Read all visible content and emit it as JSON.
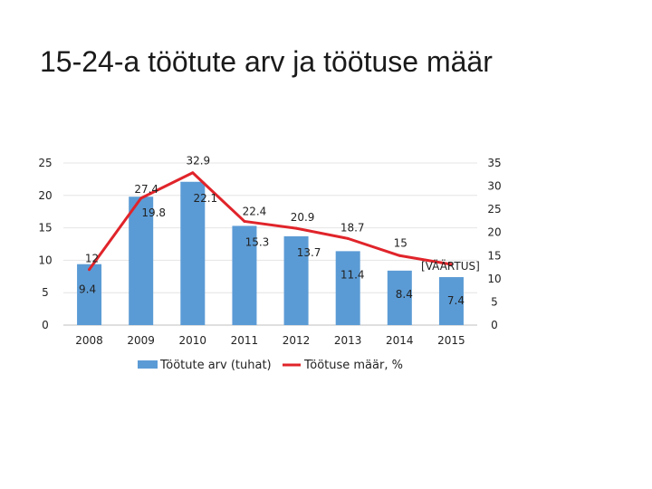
{
  "title": "15-24-a töötute arv ja töötuse määr",
  "chart_data": {
    "type": "bar+line",
    "categories": [
      "2008",
      "2009",
      "2010",
      "2011",
      "2012",
      "2013",
      "2014",
      "2015"
    ],
    "series": [
      {
        "name": "Töötute arv (tuhat)",
        "type": "bar",
        "axis": "left",
        "color": "#5b9bd5",
        "values": [
          9.4,
          19.8,
          22.1,
          15.3,
          13.7,
          11.4,
          8.4,
          7.4
        ],
        "labels": [
          "9.4",
          "19.8",
          "22.1",
          "15.3",
          "13.7",
          "11.4",
          "8.4",
          "7.4"
        ]
      },
      {
        "name": "Töötuse määr, %",
        "type": "line",
        "axis": "right",
        "color": "#e0242a",
        "values": [
          12,
          27.4,
          32.9,
          22.4,
          20.9,
          18.7,
          15,
          13.1
        ],
        "labels": [
          "12",
          "27.4",
          "32.9",
          "22.4",
          "20.9",
          "18.7",
          "15",
          "[VÄÄRTUS]"
        ]
      }
    ],
    "y_left": {
      "min": 0,
      "max": 25,
      "ticks": [
        "0",
        "5",
        "10",
        "15",
        "20",
        "25"
      ]
    },
    "y_right": {
      "min": 0,
      "max": 35,
      "ticks": [
        "0",
        "5",
        "10",
        "15",
        "20",
        "25",
        "30",
        "35"
      ]
    },
    "grid": true,
    "legend_position": "bottom"
  }
}
